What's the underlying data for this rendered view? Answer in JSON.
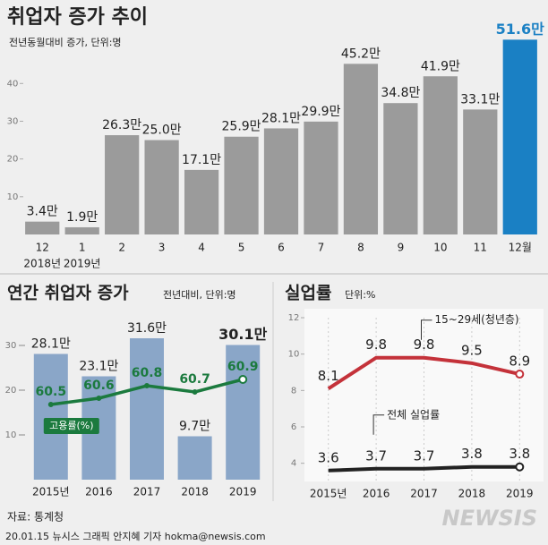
{
  "chart_data": [
    {
      "type": "bar",
      "title": "취업자 증가 추이",
      "subtitle": "전년동월대비 증가, 단위:명",
      "categories": [
        "12",
        "1",
        "2",
        "3",
        "4",
        "5",
        "6",
        "7",
        "8",
        "9",
        "10",
        "11",
        "12월"
      ],
      "x_sublabels": [
        "2018년",
        "2019년",
        null,
        null,
        null,
        null,
        null,
        null,
        null,
        null,
        null,
        null,
        null
      ],
      "values": [
        3.4,
        1.9,
        26.3,
        25.0,
        17.1,
        25.9,
        28.1,
        29.9,
        45.2,
        34.8,
        41.9,
        33.1,
        51.6
      ],
      "value_labels": [
        "3.4만",
        "1.9만",
        "26.3만",
        "25.0만",
        "17.1만",
        "25.9만",
        "28.1만",
        "29.9만",
        "45.2만",
        "34.8만",
        "41.9만",
        "33.1만",
        "51.6만"
      ],
      "colors": [
        "#9b9b9b",
        "#9b9b9b",
        "#9b9b9b",
        "#9b9b9b",
        "#9b9b9b",
        "#9b9b9b",
        "#9b9b9b",
        "#9b9b9b",
        "#9b9b9b",
        "#9b9b9b",
        "#9b9b9b",
        "#9b9b9b",
        "#1a80c4"
      ],
      "ylim": [
        0,
        55
      ],
      "yticks": [
        10,
        20,
        30,
        40
      ]
    },
    {
      "type": "bar_line",
      "title": "연간 취업자 증가",
      "subtitle": "전년대비, 단위:명",
      "categories": [
        "2015년",
        "2016",
        "2017",
        "2018",
        "2019"
      ],
      "values": [
        28.1,
        23.1,
        31.6,
        9.7,
        30.1
      ],
      "value_labels": [
        "28.1만",
        "23.1만",
        "31.6만",
        "9.7만",
        "30.1만"
      ],
      "color": "#8aa6c8",
      "series": [
        {
          "name": "고용률(%)",
          "color": "#1b7a3e",
          "values": [
            60.5,
            60.6,
            60.8,
            60.7,
            60.9
          ],
          "axis": "y2"
        }
      ],
      "ylim": [
        0,
        35
      ],
      "yticks": [
        10,
        20,
        30
      ],
      "y2lim": [
        59.3,
        61.8
      ]
    },
    {
      "type": "line",
      "title": "실업률",
      "subtitle": "단위:%",
      "categories": [
        "2015년",
        "2016",
        "2017",
        "2018",
        "2019"
      ],
      "series": [
        {
          "name": "15~29세(청년층)",
          "color": "#c4323a",
          "values": [
            8.1,
            9.8,
            9.8,
            9.5,
            8.9
          ]
        },
        {
          "name": "전체 실업률",
          "color": "#222222",
          "values": [
            3.6,
            3.7,
            3.7,
            3.8,
            3.8
          ]
        }
      ],
      "ylim": [
        3,
        12
      ],
      "yticks": [
        4,
        6,
        8,
        10,
        12
      ]
    }
  ],
  "source": "자료: 통계청",
  "credit": "20.01.15 뉴시스 그래픽 안지혜 기자 hokma@newsis.com",
  "watermark": "NEWSIS"
}
